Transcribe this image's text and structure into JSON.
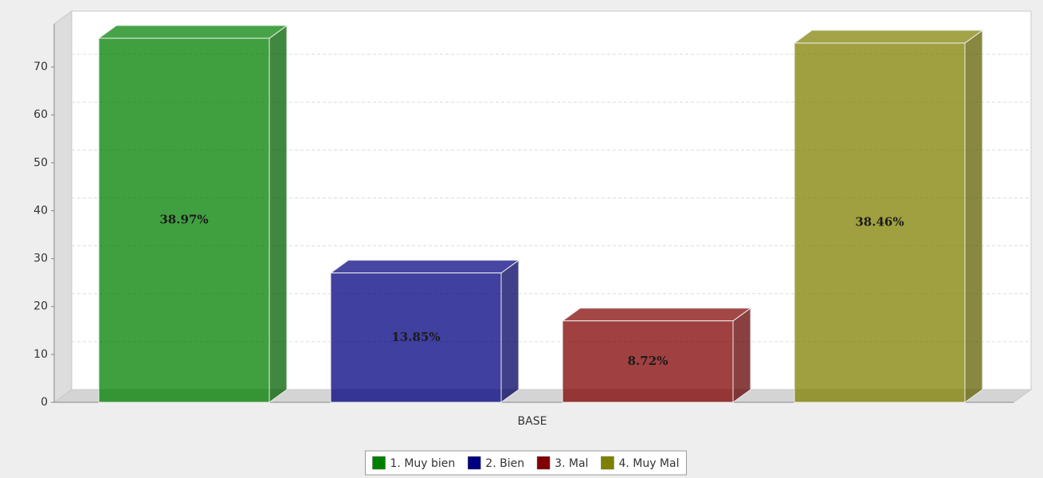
{
  "chart_data": {
    "type": "bar3d",
    "categories": [
      "BASE"
    ],
    "series": [
      {
        "name": "1. Muy bien",
        "color": "#008000",
        "values": [
          76
        ],
        "value_labels": [
          "38.97%"
        ]
      },
      {
        "name": "2. Bien",
        "color": "#000080",
        "values": [
          27
        ],
        "value_labels": [
          "13.85%"
        ]
      },
      {
        "name": "3. Mal",
        "color": "#800000",
        "values": [
          17
        ],
        "value_labels": [
          "8.72%"
        ]
      },
      {
        "name": "4. Muy Mal",
        "color": "#808000",
        "values": [
          75
        ],
        "value_labels": [
          "38.46%"
        ]
      }
    ],
    "ylim": [
      0,
      79
    ],
    "yticks": [
      0,
      10,
      20,
      30,
      40,
      50,
      60,
      70
    ],
    "grid": true,
    "legend": "bottom"
  }
}
